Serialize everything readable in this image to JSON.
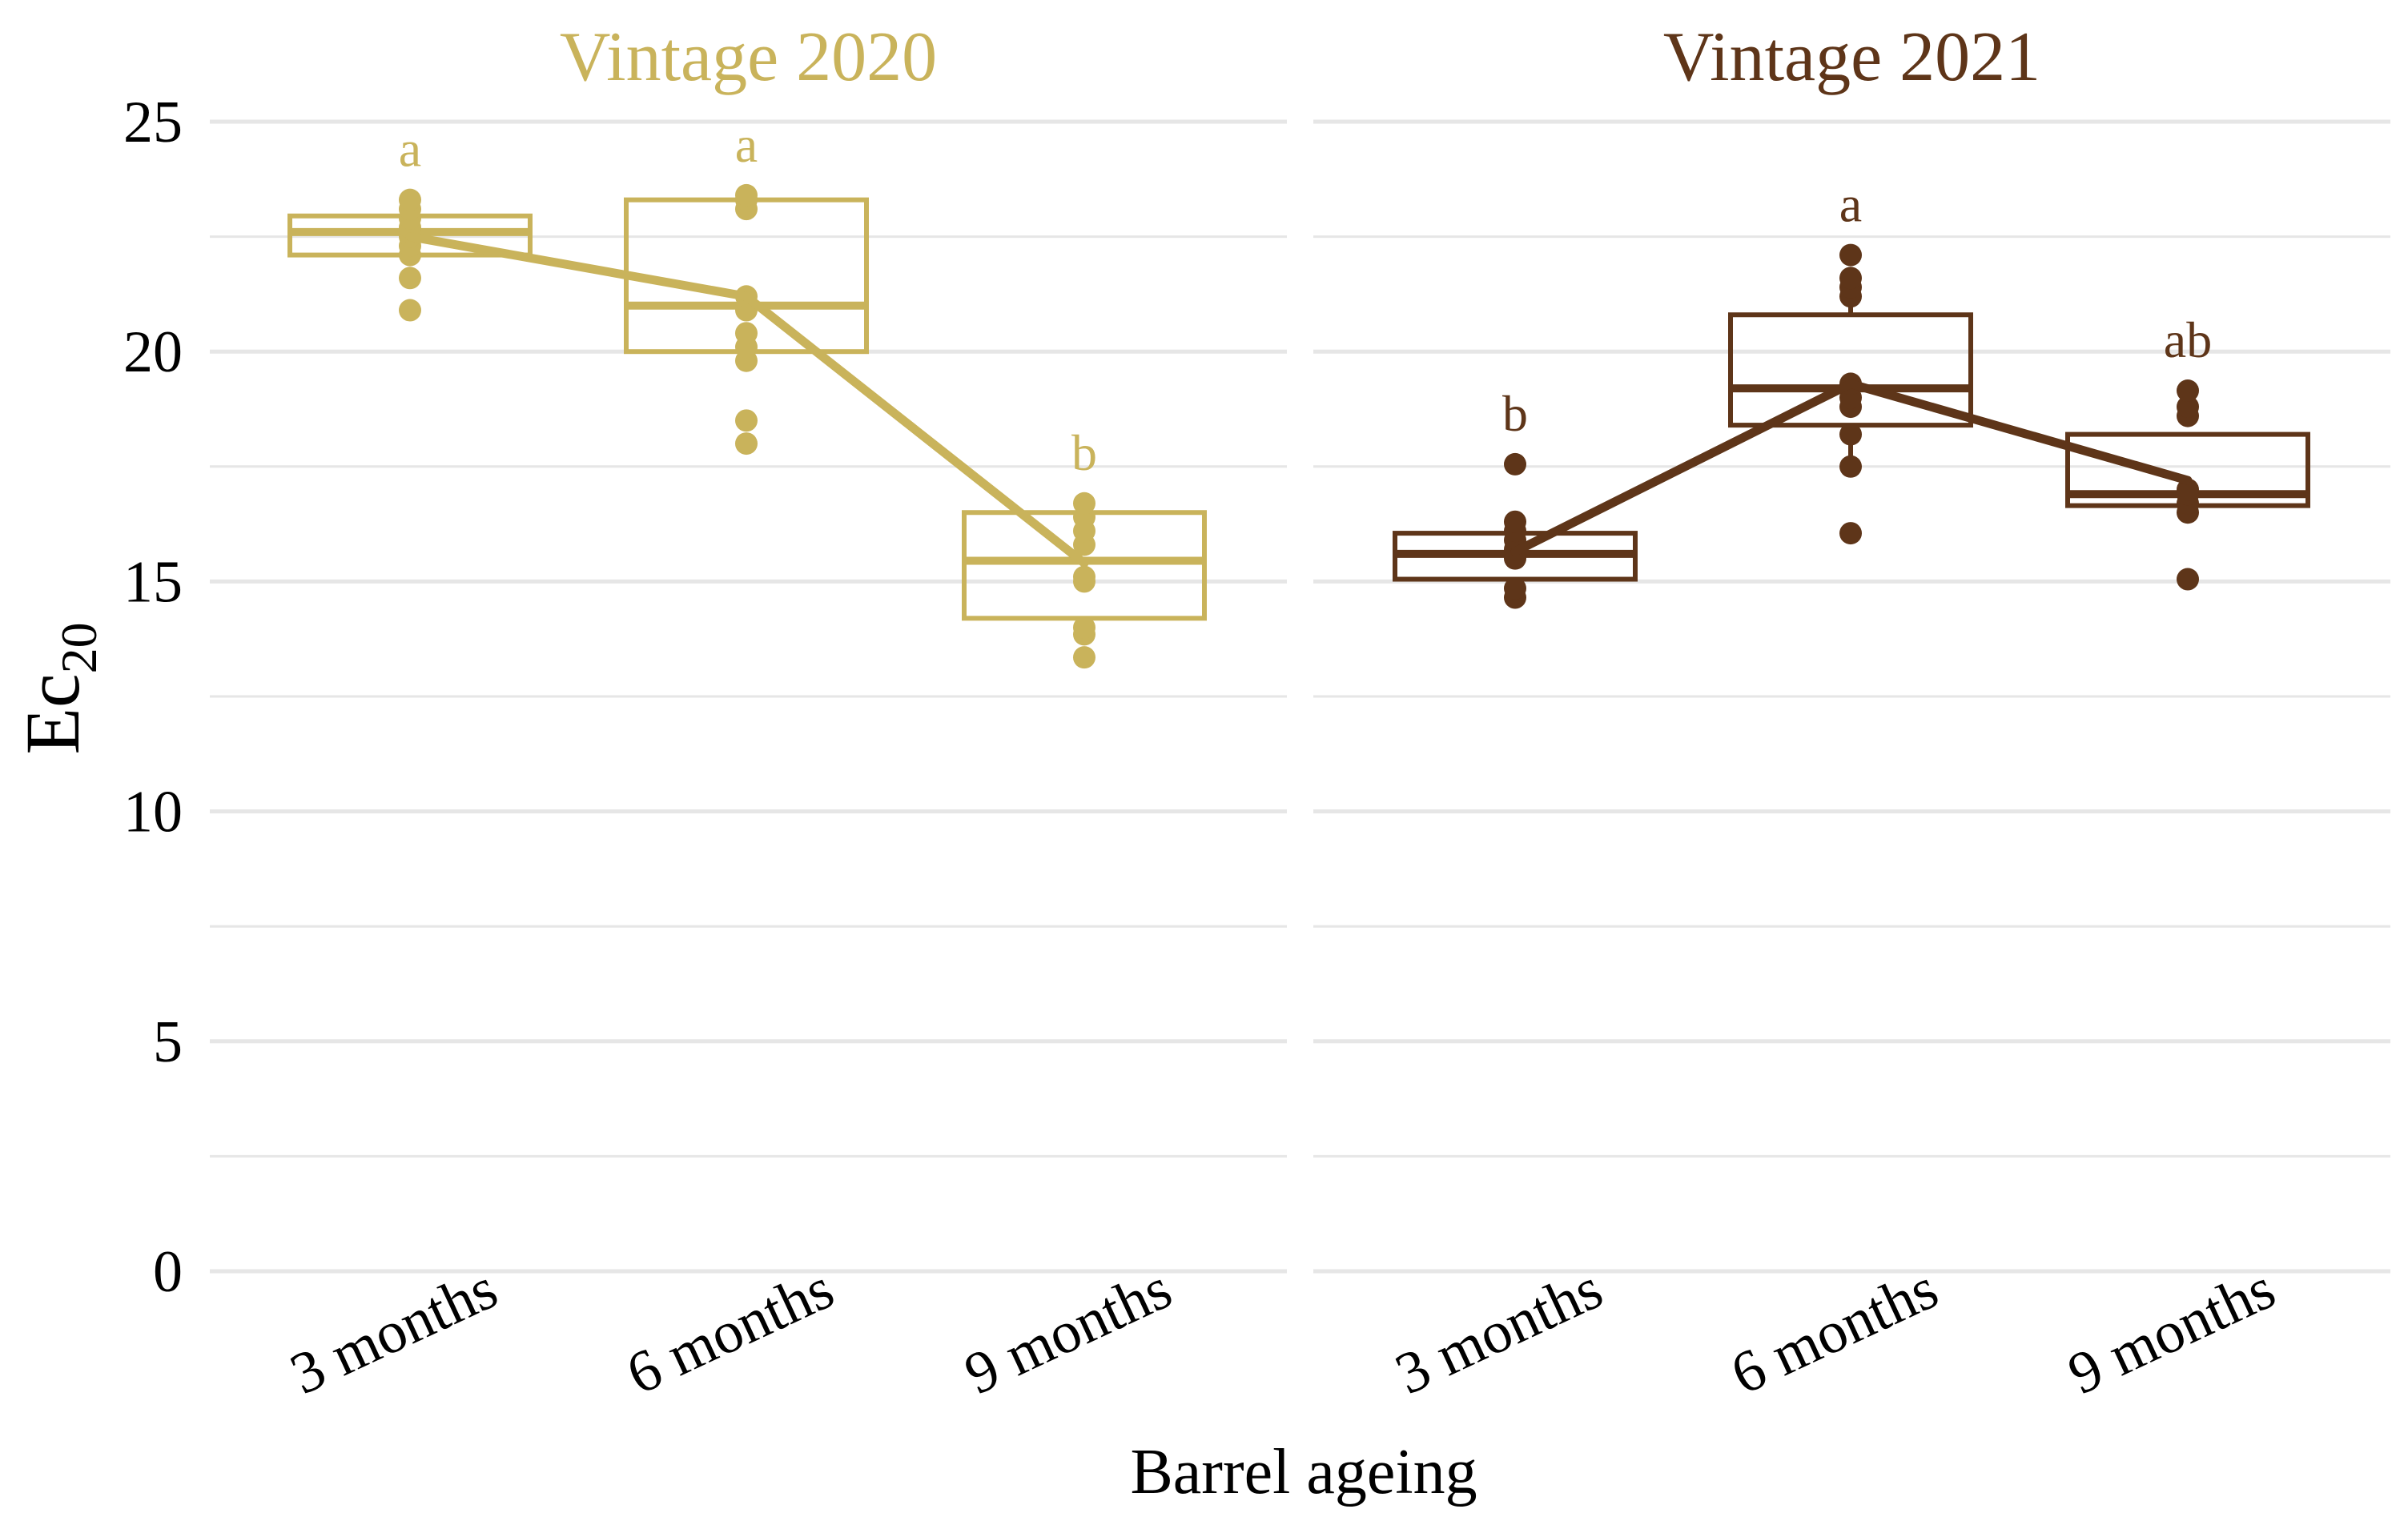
{
  "chart_data": {
    "type": "box",
    "ylabel": "Ec",
    "ylabel_subscript": "20",
    "xlabel": "Barrel ageing",
    "ylim": [
      0,
      25
    ],
    "yticks": [
      0,
      5,
      10,
      15,
      20,
      25
    ],
    "categories": [
      "3 months",
      "6 months",
      "9 months"
    ],
    "grid": true,
    "panels": [
      {
        "title": "Vintage 2020",
        "color": "#C9B35B",
        "groups": [
          {
            "category": "3 months",
            "q1": 22.1,
            "median": 22.6,
            "q3": 22.95,
            "whisker_low": 22.1,
            "whisker_high": 22.95,
            "mean": 22.5,
            "letter": "a",
            "points": [
              20.9,
              21.6,
              22.1,
              22.3,
              22.5,
              22.6,
              22.7,
              22.9,
              23.1,
              23.3
            ]
          },
          {
            "category": "6 months",
            "q1": 20.0,
            "median": 21.0,
            "q3": 23.3,
            "whisker_low": 20.0,
            "whisker_high": 23.3,
            "mean": 21.2,
            "letter": "a",
            "points": [
              18.0,
              18.5,
              19.8,
              20.1,
              20.4,
              20.9,
              21.2,
              23.1,
              23.3,
              23.4
            ]
          },
          {
            "category": "9 months",
            "q1": 14.2,
            "median": 15.45,
            "q3": 16.5,
            "whisker_low": 14.2,
            "whisker_high": 16.5,
            "mean": 15.4,
            "letter": "b",
            "points": [
              13.35,
              13.85,
              14.0,
              15.0,
              15.1,
              15.8,
              16.1,
              16.4,
              16.7
            ]
          }
        ]
      },
      {
        "title": "Vintage 2021",
        "color": "#5E3519",
        "groups": [
          {
            "category": "3 months",
            "q1": 15.05,
            "median": 15.6,
            "q3": 16.05,
            "whisker_low": 15.05,
            "whisker_high": 16.05,
            "mean": 15.65,
            "letter": "b",
            "points": [
              14.65,
              14.85,
              15.5,
              15.7,
              15.9,
              16.1,
              16.3,
              17.55
            ]
          },
          {
            "category": "6 months",
            "q1": 18.4,
            "median": 19.2,
            "q3": 20.8,
            "whisker_low": 17.5,
            "whisker_high": 21.2,
            "mean": 19.3,
            "letter": "a",
            "points": [
              16.05,
              17.5,
              18.2,
              18.8,
              19.0,
              19.3,
              21.2,
              21.4,
              21.6,
              22.1
            ]
          },
          {
            "category": "9 months",
            "q1": 16.65,
            "median": 16.9,
            "q3": 18.2,
            "whisker_low": 16.5,
            "whisker_high": 18.2,
            "mean": 17.2,
            "letter": "ab",
            "points": [
              15.05,
              16.5,
              16.7,
              16.9,
              17.0,
              18.6,
              18.8,
              19.15
            ]
          }
        ]
      }
    ]
  }
}
